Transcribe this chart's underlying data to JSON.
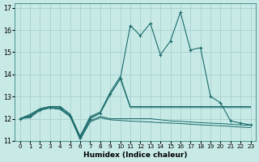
{
  "xlabel": "Humidex (Indice chaleur)",
  "bg_color": "#c8eae6",
  "grid_color": "#a0cccc",
  "line_color": "#1a6b6b",
  "xlim": [
    -0.5,
    23.5
  ],
  "ylim": [
    11,
    17.2
  ],
  "yticks": [
    11,
    12,
    13,
    14,
    15,
    16,
    17
  ],
  "xticks": [
    0,
    1,
    2,
    3,
    4,
    5,
    6,
    7,
    8,
    9,
    10,
    11,
    12,
    13,
    14,
    15,
    16,
    17,
    18,
    19,
    20,
    21,
    22,
    23
  ],
  "main_x": [
    0,
    1,
    2,
    3,
    4,
    5,
    6,
    7,
    8,
    9,
    10,
    11,
    12,
    13,
    14,
    15,
    16,
    17,
    18,
    19,
    20,
    21,
    22,
    23
  ],
  "main_y": [
    12.0,
    12.1,
    12.4,
    12.5,
    12.5,
    12.1,
    11.15,
    12.0,
    12.25,
    13.1,
    13.8,
    16.2,
    15.75,
    16.3,
    14.88,
    15.5,
    16.8,
    15.1,
    15.2,
    13.0,
    12.72,
    11.9,
    11.8,
    11.72
  ],
  "line2_y": [
    12.0,
    12.2,
    12.45,
    12.55,
    12.55,
    12.2,
    11.2,
    12.1,
    12.3,
    13.2,
    13.9,
    12.55,
    12.55,
    12.55,
    12.55,
    12.55,
    12.55,
    12.55,
    12.55,
    12.55,
    12.55,
    12.55,
    12.55,
    12.55
  ],
  "line3_y": [
    12.0,
    12.15,
    12.45,
    12.55,
    12.55,
    12.2,
    11.2,
    12.05,
    12.25,
    13.1,
    13.8,
    12.5,
    12.5,
    12.5,
    12.5,
    12.5,
    12.5,
    12.5,
    12.5,
    12.5,
    12.5,
    12.5,
    12.5,
    12.5
  ],
  "line4_y": [
    12.0,
    12.1,
    12.4,
    12.5,
    12.45,
    12.15,
    11.1,
    11.9,
    12.1,
    12.0,
    12.0,
    12.0,
    12.0,
    12.0,
    11.95,
    11.9,
    11.88,
    11.85,
    11.82,
    11.8,
    11.78,
    11.75,
    11.72,
    11.7
  ],
  "line5_y": [
    12.0,
    12.05,
    12.38,
    12.48,
    12.42,
    12.1,
    11.05,
    11.85,
    12.05,
    11.95,
    11.92,
    11.89,
    11.87,
    11.85,
    11.82,
    11.8,
    11.78,
    11.75,
    11.72,
    11.7,
    11.68,
    11.65,
    11.62,
    11.6
  ]
}
